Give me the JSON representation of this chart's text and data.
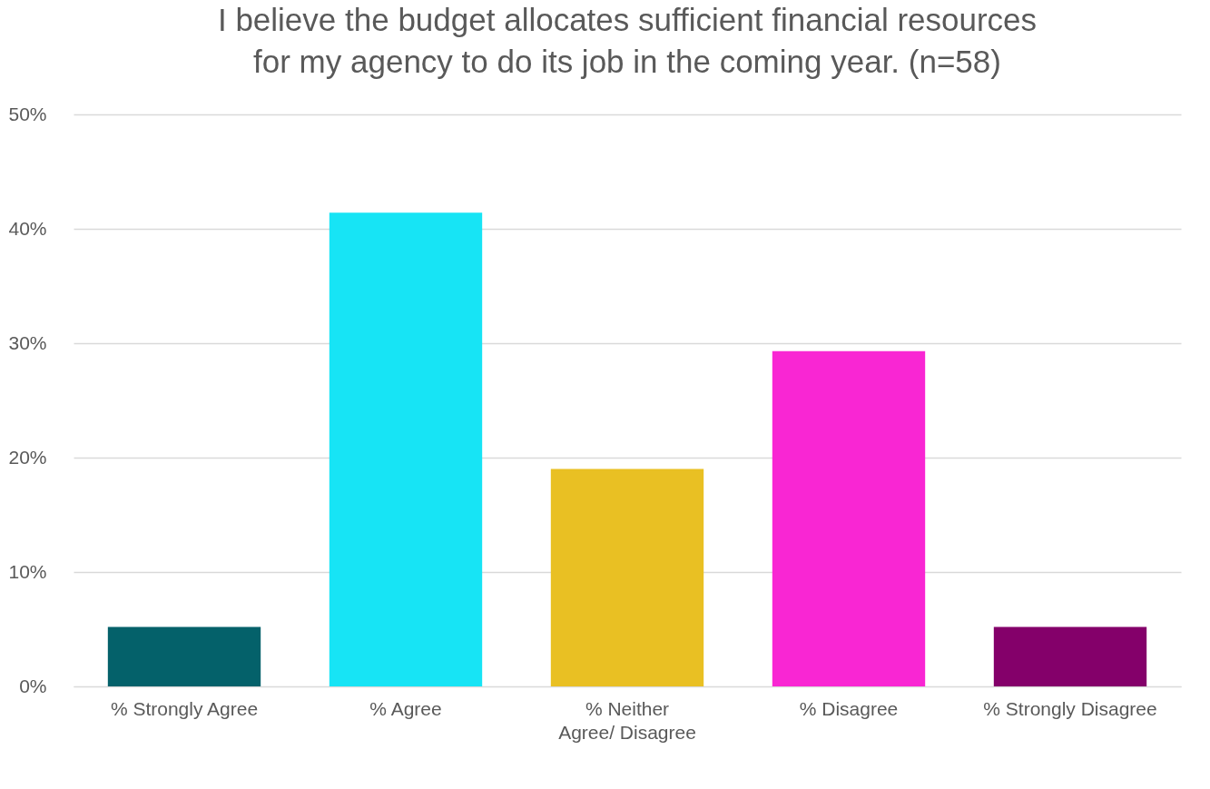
{
  "chart_data": {
    "type": "bar",
    "title": "I believe the budget allocates sufficient financial resources for my agency to do its job in the coming year. (n=58)",
    "categories": [
      "% Strongly Agree",
      "% Agree",
      "% Neither Agree/ Disagree",
      "% Disagree",
      "% Strongly Disagree"
    ],
    "values": [
      5.2,
      41.4,
      19.0,
      29.3,
      5.2
    ],
    "colors": [
      "#04616a",
      "#17e4f5",
      "#e9c023",
      "#f926d3",
      "#84006a"
    ],
    "ylim": [
      0,
      50
    ],
    "yticks": [
      {
        "value": 0,
        "label": "0%"
      },
      {
        "value": 10,
        "label": "10%"
      },
      {
        "value": 20,
        "label": "20%"
      },
      {
        "value": 30,
        "label": "30%"
      },
      {
        "value": 40,
        "label": "40%"
      },
      {
        "value": 50,
        "label": "50%"
      }
    ],
    "grid": "y",
    "legend": false
  }
}
